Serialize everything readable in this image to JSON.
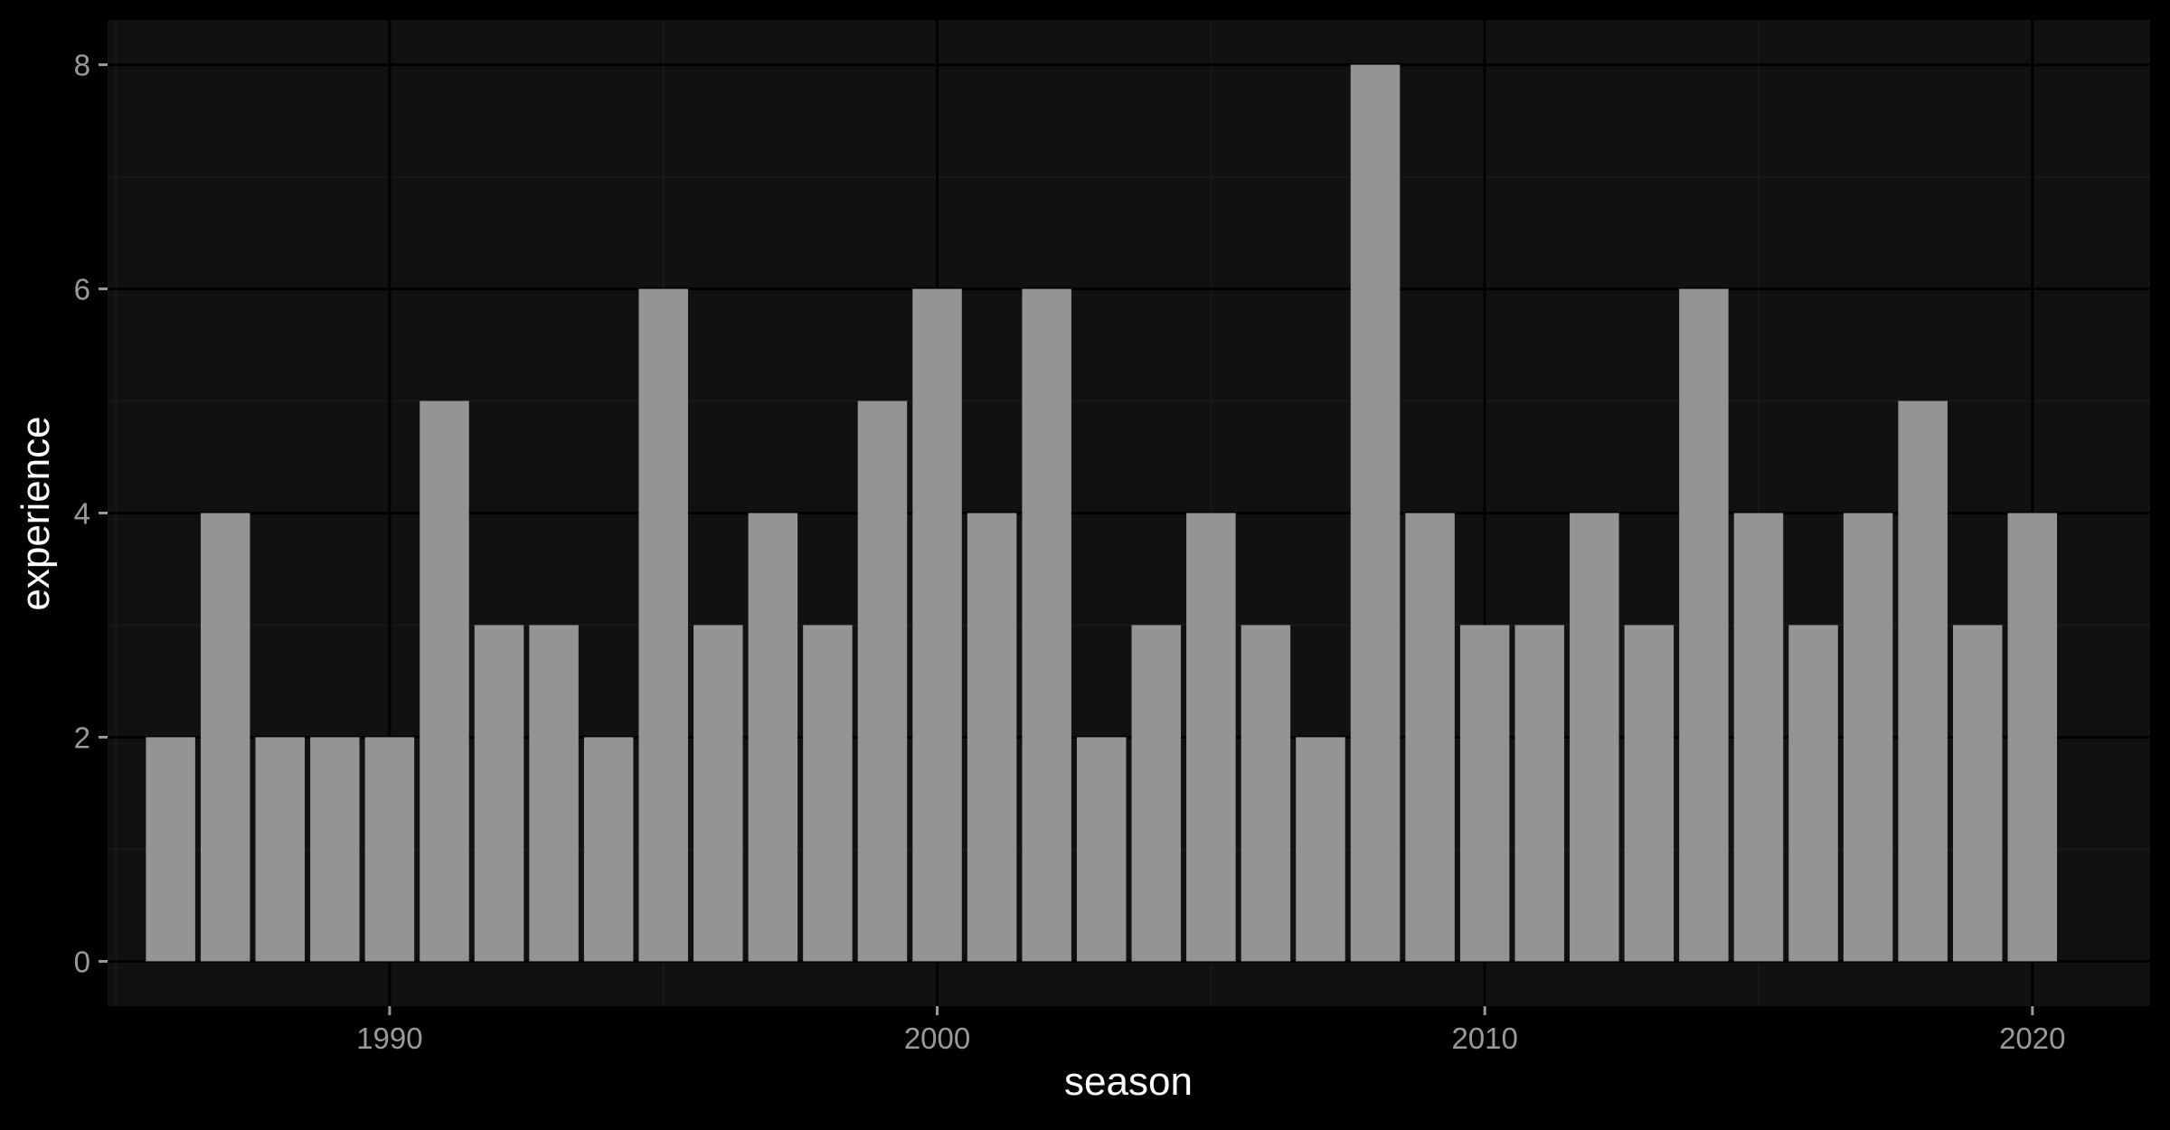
{
  "colors": {
    "page_background": "#000000",
    "panel_background": "#111111",
    "grid_major": "#000000",
    "grid_minor": "#1b1b1b",
    "bar_fill": "#949494",
    "tick_text": "#9a9a9a",
    "axis_title_text": "#ffffff"
  },
  "chart_data": {
    "type": "bar",
    "title": "",
    "xlabel": "season",
    "ylabel": "experience",
    "x": [
      1986,
      1987,
      1988,
      1989,
      1990,
      1991,
      1992,
      1993,
      1994,
      1995,
      1996,
      1997,
      1998,
      1999,
      2000,
      2001,
      2002,
      2003,
      2004,
      2005,
      2006,
      2007,
      2008,
      2009,
      2010,
      2011,
      2012,
      2013,
      2014,
      2015,
      2016,
      2017,
      2018,
      2019,
      2020
    ],
    "values": [
      2,
      4,
      2,
      2,
      2,
      5,
      3,
      3,
      2,
      6,
      3,
      4,
      3,
      5,
      6,
      4,
      6,
      2,
      3,
      4,
      3,
      2,
      8,
      4,
      3,
      3,
      4,
      3,
      6,
      4,
      3,
      4,
      5,
      3,
      4
    ],
    "xlim": [
      1984.85,
      2022.15
    ],
    "ylim": [
      -0.4,
      8.4
    ],
    "x_ticks": [
      1990,
      2000,
      2010,
      2020
    ],
    "x_tick_labels": [
      "1990",
      "2000",
      "2010",
      "2020"
    ],
    "y_ticks": [
      0,
      2,
      4,
      6,
      8
    ],
    "y_tick_labels": [
      "0",
      "2",
      "4",
      "6",
      "8"
    ],
    "grid": true,
    "legend": "none"
  }
}
